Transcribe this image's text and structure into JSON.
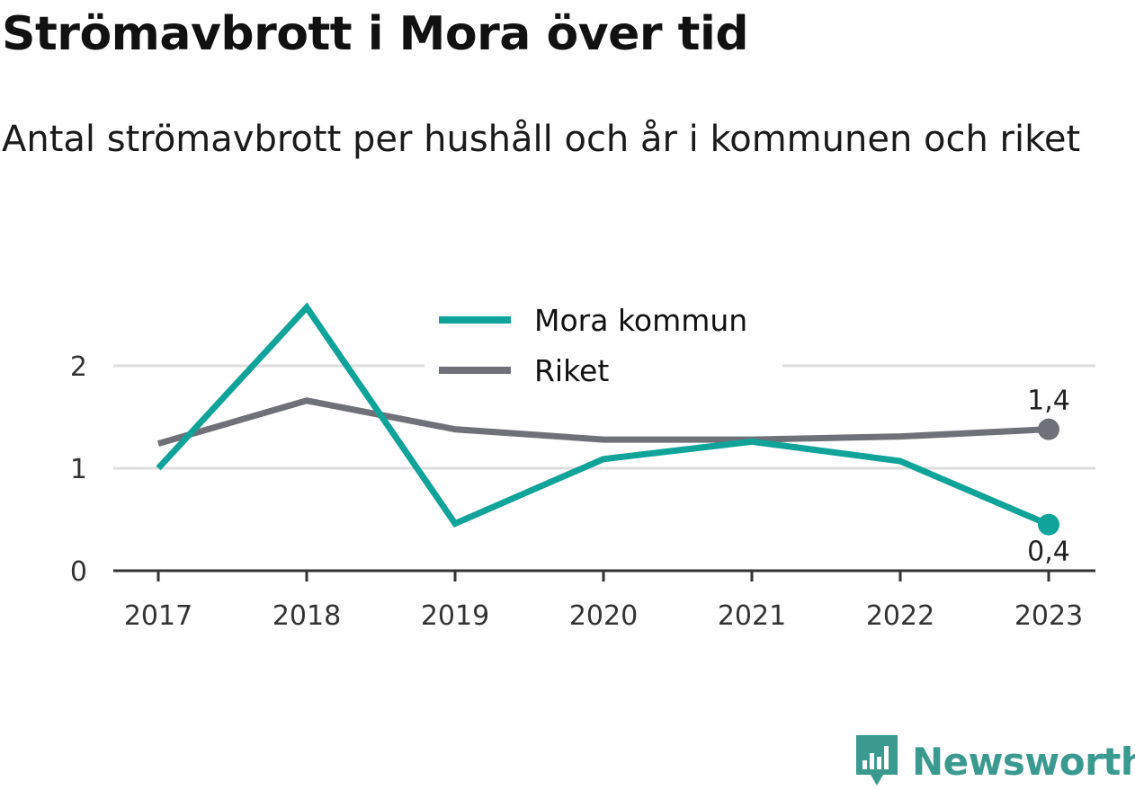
{
  "chart_data": {
    "type": "line",
    "title": "Strömavbrott i Mora över tid",
    "subtitle": "Antal strömavbrott per hushåll och år i kommunen och riket",
    "categories": [
      "2017",
      "2018",
      "2019",
      "2020",
      "2021",
      "2022",
      "2023"
    ],
    "ylim": [
      0,
      2.5
    ],
    "yticks": [
      0,
      1,
      2
    ],
    "grid": true,
    "legend_position": "top-center",
    "series": [
      {
        "name": "Mora kommun",
        "color": "#0fa39a",
        "values": [
          1.0,
          2.57,
          0.46,
          1.09,
          1.26,
          1.07,
          0.45
        ],
        "end_label": "0,4"
      },
      {
        "name": "Riket",
        "color": "#707078",
        "values": [
          1.24,
          1.66,
          1.38,
          1.28,
          1.28,
          1.31,
          1.38
        ],
        "end_label": "1,4"
      }
    ]
  },
  "logo": {
    "text": "Newsworthy",
    "icon": "newsworthy-chart-icon"
  }
}
